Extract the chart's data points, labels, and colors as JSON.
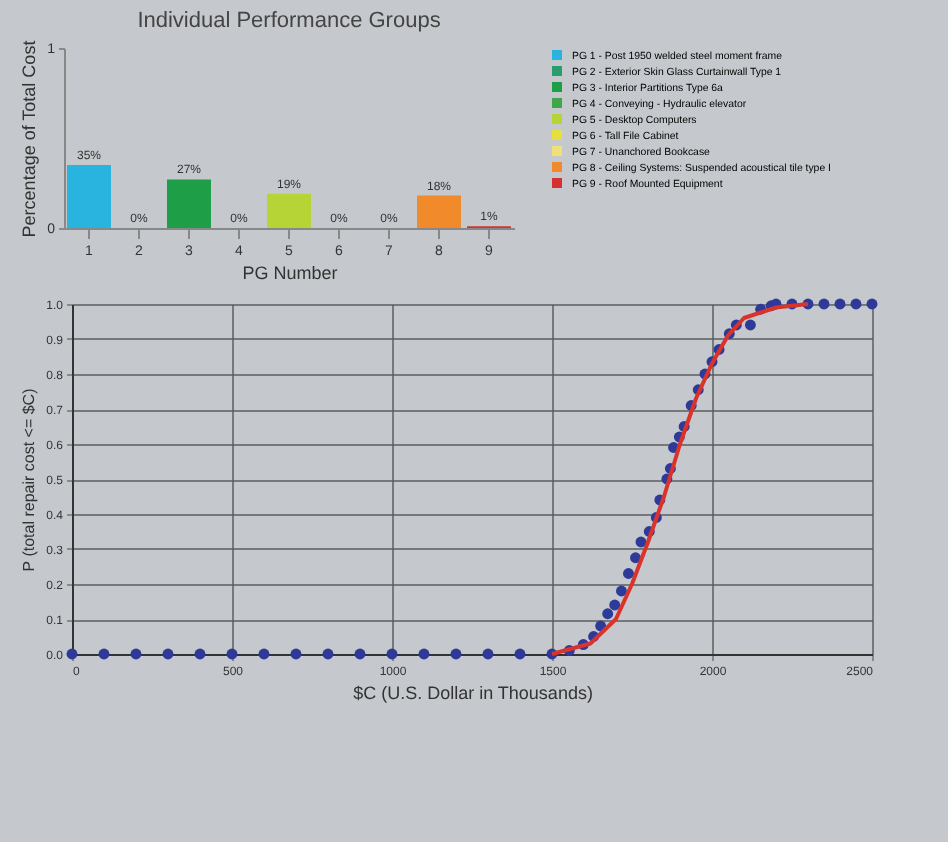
{
  "chart_data": [
    {
      "type": "bar",
      "title": "Individual Performance Groups",
      "xlabel": "PG Number",
      "ylabel": "Percentage of Total Cost",
      "legend": "right",
      "categories": [
        "1",
        "2",
        "3",
        "4",
        "5",
        "6",
        "7",
        "8",
        "9"
      ],
      "ylim": [
        0,
        1
      ],
      "yticks": [
        0,
        1
      ],
      "series": [
        {
          "name": "PG 1 - Post 1950 welded steel moment frame",
          "color": "#29b3df",
          "values": [
            0.35,
            null,
            null,
            null,
            null,
            null,
            null,
            null,
            null
          ],
          "value_labels": [
            "35%",
            null,
            null,
            null,
            null,
            null,
            null,
            null,
            null
          ]
        },
        {
          "name": "PG 2 - Exterior Skin Glass Curtainwall Type 1",
          "color": "#2a9d6e",
          "values": [
            null,
            0,
            null,
            null,
            null,
            null,
            null,
            null,
            null
          ],
          "value_labels": [
            null,
            "0%",
            null,
            null,
            null,
            null,
            null,
            null,
            null
          ]
        },
        {
          "name": "PG 3 - Interior Partitions Type 6a",
          "color": "#1f9e48",
          "values": [
            null,
            null,
            0.27,
            null,
            null,
            null,
            null,
            null,
            null
          ],
          "value_labels": [
            null,
            null,
            "27%",
            null,
            null,
            null,
            null,
            null,
            null
          ]
        },
        {
          "name": "PG 4 - Conveying - Hydraulic elevator",
          "color": "#3fa64a",
          "values": [
            null,
            null,
            null,
            0,
            null,
            null,
            null,
            null,
            null
          ],
          "value_labels": [
            null,
            null,
            null,
            "0%",
            null,
            null,
            null,
            null,
            null
          ]
        },
        {
          "name": "PG 5 - Desktop Computers",
          "color": "#b6d436",
          "values": [
            null,
            null,
            null,
            null,
            0.19,
            null,
            null,
            null,
            null
          ],
          "value_labels": [
            null,
            null,
            null,
            null,
            "19%",
            null,
            null,
            null,
            null
          ]
        },
        {
          "name": "PG 6 - Tall File Cabinet",
          "color": "#e6df3c",
          "values": [
            null,
            null,
            null,
            null,
            null,
            0,
            null,
            null,
            null
          ],
          "value_labels": [
            null,
            null,
            null,
            null,
            null,
            "0%",
            null,
            null,
            null
          ]
        },
        {
          "name": "PG 7 - Unanchored Bookcase",
          "color": "#f1df78",
          "values": [
            null,
            null,
            null,
            null,
            null,
            null,
            0,
            null,
            null
          ],
          "value_labels": [
            null,
            null,
            null,
            null,
            null,
            null,
            "0%",
            null,
            null
          ]
        },
        {
          "name": "PG 8 - Ceiling Systems: Suspended acoustical tile type I",
          "color": "#f08a2a",
          "values": [
            null,
            null,
            null,
            null,
            null,
            null,
            null,
            0.18,
            null
          ],
          "value_labels": [
            null,
            null,
            null,
            null,
            null,
            null,
            null,
            "18%",
            null
          ]
        },
        {
          "name": "PG 9 - Roof Mounted Equipment",
          "color": "#d63131",
          "values": [
            null,
            null,
            null,
            null,
            null,
            null,
            null,
            null,
            0.01
          ],
          "value_labels": [
            null,
            null,
            null,
            null,
            null,
            null,
            null,
            null,
            "1%"
          ]
        }
      ]
    },
    {
      "type": "scatter",
      "xlabel": "$C (U.S. Dollar in Thousands)",
      "ylabel": "P (total repair cost <= $C)",
      "grid": true,
      "xlim": [
        0,
        2500
      ],
      "xticks": [
        0,
        500,
        1000,
        1500,
        2000,
        2500
      ],
      "ylim": [
        0,
        1
      ],
      "yticks": [
        {
          "value": 0,
          "label": "0.0"
        },
        {
          "value": 0.1,
          "label": "0.1"
        },
        {
          "value": 0.2,
          "label": "0.2"
        },
        {
          "value": 0.3,
          "label": "0.3"
        },
        {
          "value": 0.4,
          "label": "0.4"
        },
        {
          "value": 0.5,
          "label": "0.5"
        },
        {
          "value": 0.6,
          "label": "0.6"
        },
        {
          "value": 0.7,
          "label": "0.7"
        },
        {
          "value": 0.8,
          "label": "0.8"
        },
        {
          "value": 0.9,
          "label": "0.9"
        },
        {
          "value": 1,
          "label": "1.0"
        }
      ],
      "series": [
        {
          "type": "scatter",
          "marker": "circle",
          "color": "#2e3a9a",
          "x": [
            0,
            100,
            200,
            300,
            400,
            500,
            600,
            700,
            800,
            900,
            1000,
            1100,
            1200,
            1300,
            1400,
            1500,
            1554,
            1598,
            1630,
            1652,
            1674,
            1696,
            1717,
            1739,
            1761,
            1778,
            1804,
            1826,
            1837,
            1859,
            1870,
            1880,
            1898,
            1913,
            1935,
            1957,
            1978,
            2000,
            2022,
            2054,
            2076,
            2120,
            2152,
            2185,
            2200,
            2250,
            2300,
            2350,
            2400,
            2450,
            2500
          ],
          "values": [
            0,
            0,
            0,
            0,
            0,
            0,
            0,
            0,
            0,
            0,
            0,
            0,
            0,
            0,
            0,
            0,
            0.01,
            0.027,
            0.05,
            0.08,
            0.115,
            0.14,
            0.18,
            0.23,
            0.275,
            0.32,
            0.35,
            0.39,
            0.44,
            0.5,
            0.53,
            0.59,
            0.62,
            0.65,
            0.71,
            0.755,
            0.8,
            0.835,
            0.87,
            0.915,
            0.94,
            0.94,
            0.985,
            0.995,
            1,
            1,
            1,
            1,
            1,
            1,
            1
          ]
        },
        {
          "type": "line",
          "color": "#d9332c",
          "x": [
            1500,
            1620,
            1700,
            1750,
            1800,
            1850,
            1900,
            1950,
            2000,
            2050,
            2100,
            2200,
            2300
          ],
          "values": [
            0,
            0.03,
            0.1,
            0.2,
            0.32,
            0.45,
            0.6,
            0.73,
            0.83,
            0.91,
            0.96,
            0.99,
            1
          ]
        }
      ]
    }
  ]
}
